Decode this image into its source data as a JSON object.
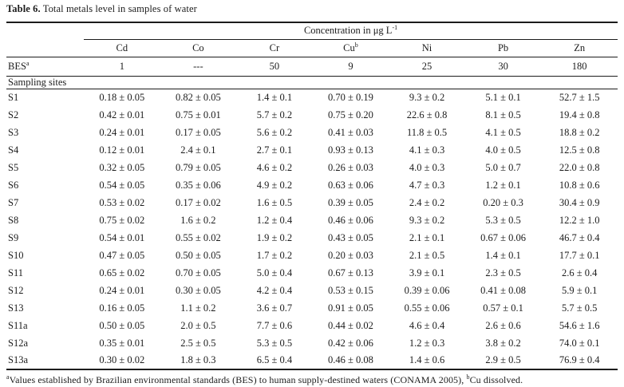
{
  "page": {
    "title_label": "Table 6.",
    "title_text": " Total metals level in samples of water"
  },
  "table": {
    "span_header": {
      "text": "Concentration in μg L",
      "sup": "-1"
    },
    "columns": [
      "Cd",
      "Co",
      "Cr",
      "Cu",
      "Ni",
      "Pb",
      "Zn"
    ],
    "cu_sup": "b",
    "bes": {
      "label": "BES",
      "sup": "a",
      "values": [
        "1",
        "---",
        "50",
        "9",
        "25",
        "30",
        "180"
      ]
    },
    "section_label": "Sampling sites",
    "rows": [
      {
        "site": "S1",
        "values": [
          "0.18 ± 0.05",
          "0.82 ± 0.05",
          "1.4 ± 0.1",
          "0.70 ± 0.19",
          "9.3 ± 0.2",
          "5.1 ± 0.1",
          "52.7 ± 1.5"
        ]
      },
      {
        "site": "S2",
        "values": [
          "0.42 ± 0.01",
          "0.75 ± 0.01",
          "5.7 ± 0.2",
          "0.75 ± 0.20",
          "22.6 ± 0.8",
          "8.1 ± 0.5",
          "19.4 ± 0.8"
        ]
      },
      {
        "site": "S3",
        "values": [
          "0.24 ± 0.01",
          "0.17 ± 0.05",
          "5.6 ± 0.2",
          "0.41 ± 0.03",
          "11.8 ± 0.5",
          "4.1 ± 0.5",
          "18.8 ± 0.2"
        ]
      },
      {
        "site": "S4",
        "values": [
          "0.12 ± 0.01",
          "2.4 ± 0.1",
          "2.7 ± 0.1",
          "0.93 ± 0.13",
          "4.1 ± 0.3",
          "4.0 ± 0.5",
          "12.5 ± 0.8"
        ]
      },
      {
        "site": "S5",
        "values": [
          "0.32 ± 0.05",
          "0.79 ± 0.05",
          "4.6 ± 0.2",
          "0.26 ± 0.03",
          "4.0 ± 0.3",
          "5.0 ± 0.7",
          "22.0 ± 0.8"
        ]
      },
      {
        "site": "S6",
        "values": [
          "0.54 ± 0.05",
          "0.35 ± 0.06",
          "4.9 ± 0.2",
          "0.63 ± 0.06",
          "4.7 ± 0.3",
          "1.2 ± 0.1",
          "10.8 ± 0.6"
        ]
      },
      {
        "site": "S7",
        "values": [
          "0.53 ± 0.02",
          "0.17 ± 0.02",
          "1.6 ± 0.5",
          "0.39 ± 0.05",
          "2.4 ± 0.2",
          "0.20 ± 0.3",
          "30.4 ± 0.9"
        ]
      },
      {
        "site": "S8",
        "values": [
          "0.75 ± 0.02",
          "1.6 ± 0.2",
          "1.2 ± 0.4",
          "0.46 ± 0.06",
          "9.3 ± 0.2",
          "5.3 ± 0.5",
          "12.2 ± 1.0"
        ]
      },
      {
        "site": "S9",
        "values": [
          "0.54 ± 0.01",
          "0.55 ± 0.02",
          "1.9 ± 0.2",
          "0.43 ± 0.05",
          "2.1 ± 0.1",
          "0.67 ± 0.06",
          "46.7 ± 0.4"
        ]
      },
      {
        "site": "S10",
        "values": [
          "0.47 ± 0.05",
          "0.50 ± 0.05",
          "1.7 ± 0.2",
          "0.20 ± 0.03",
          "2.1 ± 0.5",
          "1.4 ± 0.1",
          "17.7 ± 0.1"
        ]
      },
      {
        "site": "S11",
        "values": [
          "0.65 ± 0.02",
          "0.70 ± 0.05",
          "5.0 ± 0.4",
          "0.67 ± 0.13",
          "3.9 ± 0.1",
          "2.3 ± 0.5",
          "2.6 ± 0.4"
        ]
      },
      {
        "site": "S12",
        "values": [
          "0.24 ± 0.01",
          "0.30 ± 0.05",
          "4.2 ± 0.4",
          "0.53 ± 0.15",
          "0.39 ± 0.06",
          "0.41 ± 0.08",
          "5.9 ± 0.1"
        ]
      },
      {
        "site": "S13",
        "values": [
          "0.16 ± 0.05",
          "1.1 ± 0.2",
          "3.6 ± 0.7",
          "0.91 ± 0.05",
          "0.55 ± 0.06",
          "0.57 ± 0.1",
          "5.7 ± 0.5"
        ]
      },
      {
        "site": "S11a",
        "values": [
          "0.50 ± 0.05",
          "2.0 ± 0.5",
          "7.7 ± 0.6",
          "0.44 ± 0.02",
          "4.6 ± 0.4",
          "2.6 ± 0.6",
          "54.6 ± 1.6"
        ]
      },
      {
        "site": "S12a",
        "values": [
          "0.35 ± 0.01",
          "2.5 ± 0.5",
          "5.3 ± 0.5",
          "0.42 ± 0.06",
          "1.2 ± 0.3",
          "3.8 ± 0.2",
          "74.0 ± 0.1"
        ]
      },
      {
        "site": "S13a",
        "values": [
          "0.30 ± 0.02",
          "1.8 ± 0.3",
          "6.5 ± 0.4",
          "0.46 ± 0.08",
          "1.4 ± 0.6",
          "2.9 ± 0.5",
          "76.9 ± 0.4"
        ]
      }
    ]
  },
  "footnote": {
    "sup_a": "a",
    "part_a": "Values established by Brazilian environmental standards (BES) to human supply-destined waters (CONAMA 2005), ",
    "sup_b": "b",
    "part_b": "Cu dissolved."
  }
}
